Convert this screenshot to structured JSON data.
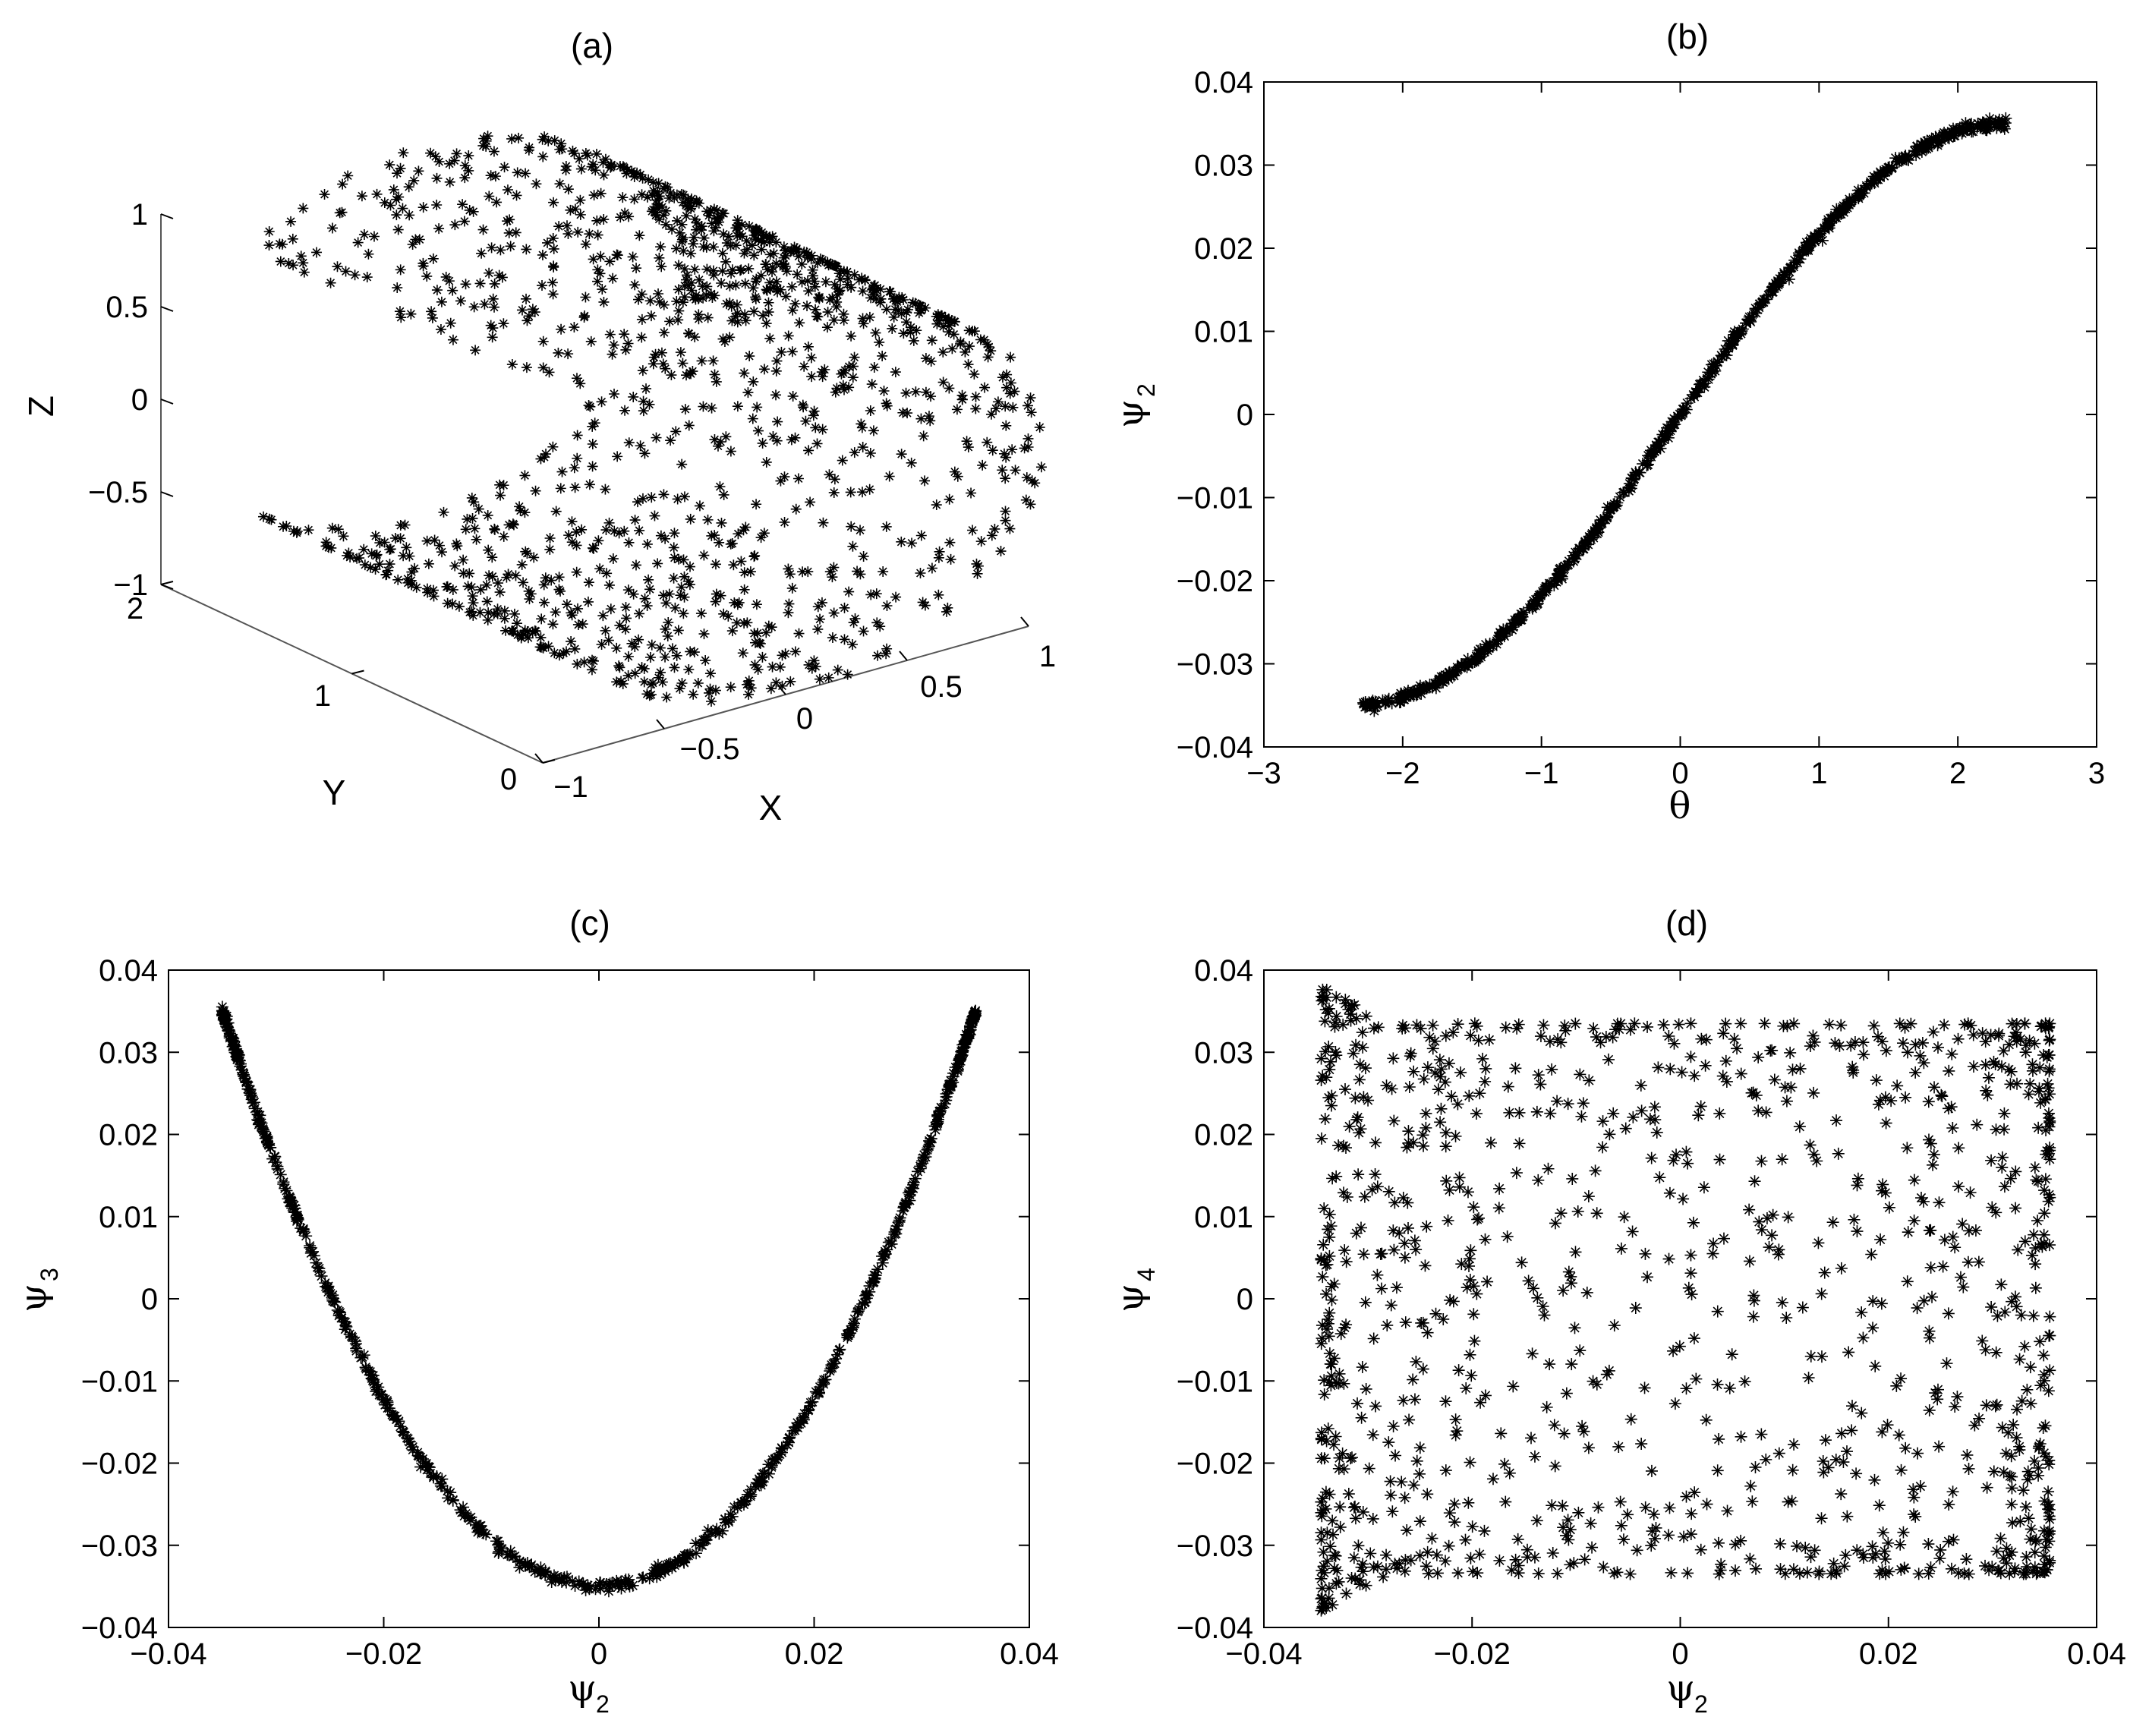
{
  "figure": {
    "panels": [
      {
        "id": "a",
        "title": "(a)"
      },
      {
        "id": "b",
        "title": "(b)"
      },
      {
        "id": "c",
        "title": "(c)"
      },
      {
        "id": "d",
        "title": "(d)"
      }
    ]
  },
  "chart_data": [
    {
      "panel": "(a)",
      "type": "scatter",
      "title": "(a)",
      "marker": "*",
      "projection": "3d",
      "xlabel": "X",
      "ylabel": "Y",
      "zlabel": "Z",
      "xlim": [
        -1,
        1
      ],
      "ylim": [
        0,
        2
      ],
      "zlim": [
        -1,
        1
      ],
      "xticks": [
        "−1",
        "−0.5",
        "0",
        "0.5",
        "1"
      ],
      "yticks": [
        "0",
        "1",
        "2"
      ],
      "zticks": [
        "−1",
        "−0.5",
        "0",
        "0.5",
        "1"
      ],
      "description_of_points": "half-cylinder surface: x = cos(t), z = sin(t), t in [-2.35, 2.35], y uniform in [0, 2]",
      "theta_range": [
        -2.35,
        2.35
      ],
      "y_range": [
        0,
        2
      ],
      "n_points": 1400,
      "grid": false
    },
    {
      "panel": "(b)",
      "type": "scatter",
      "title": "(b)",
      "marker": "*",
      "xlabel": "θ",
      "ylabel_symbol": "ψ",
      "ylabel_sub": "2",
      "xlim": [
        -3,
        3
      ],
      "ylim": [
        -0.04,
        0.04
      ],
      "xticks": [
        "−3",
        "−2",
        "−1",
        "0",
        "1",
        "2",
        "3"
      ],
      "yticks": [
        "−0.04",
        "−0.03",
        "−0.02",
        "−0.01",
        "0",
        "0.01",
        "0.02",
        "0.03",
        "0.04"
      ],
      "series_function": "psi2 = 0.035 * sin(pi * theta / 4.7)",
      "x_range": [
        -2.3,
        2.35
      ],
      "n_points": 1400,
      "grid": false
    },
    {
      "panel": "(c)",
      "type": "scatter",
      "title": "(c)",
      "marker": "*",
      "xlabel_symbol": "ψ",
      "xlabel_sub": "2",
      "ylabel_symbol": "ψ",
      "ylabel_sub": "3",
      "xlim": [
        -0.04,
        0.04
      ],
      "ylim": [
        -0.04,
        0.04
      ],
      "xticks": [
        "−0.04",
        "−0.02",
        "0",
        "0.02",
        "0.04"
      ],
      "yticks": [
        "−0.04",
        "−0.03",
        "−0.02",
        "−0.01",
        "0",
        "0.01",
        "0.02",
        "0.03",
        "0.04"
      ],
      "series_function": "psi3 = -0.035 + 0.07 * (psi2 / 0.035)^2 approximately (parabolic)",
      "x_range": [
        -0.0345,
        0.0355
      ],
      "y_at_ends": [
        0.0355,
        0.0355
      ],
      "y_min": -0.035,
      "n_points": 1400,
      "grid": false
    },
    {
      "panel": "(d)",
      "type": "scatter",
      "title": "(d)",
      "marker": "*",
      "xlabel_symbol": "ψ",
      "xlabel_sub": "2",
      "ylabel_symbol": "ψ",
      "ylabel_sub": "4",
      "xlim": [
        -0.04,
        0.04
      ],
      "ylim": [
        -0.04,
        0.04
      ],
      "xticks": [
        "−0.04",
        "−0.02",
        "0",
        "0.02",
        "0.04"
      ],
      "yticks": [
        "−0.04",
        "−0.03",
        "−0.02",
        "−0.01",
        "0",
        "0.01",
        "0.02",
        "0.03",
        "0.04"
      ],
      "description_of_points": "points filling a rectangle, denser near the edges",
      "x_range": [
        -0.0345,
        0.0355
      ],
      "y_range": [
        -0.038,
        0.038
      ],
      "n_points": 1400,
      "grid": false
    }
  ]
}
